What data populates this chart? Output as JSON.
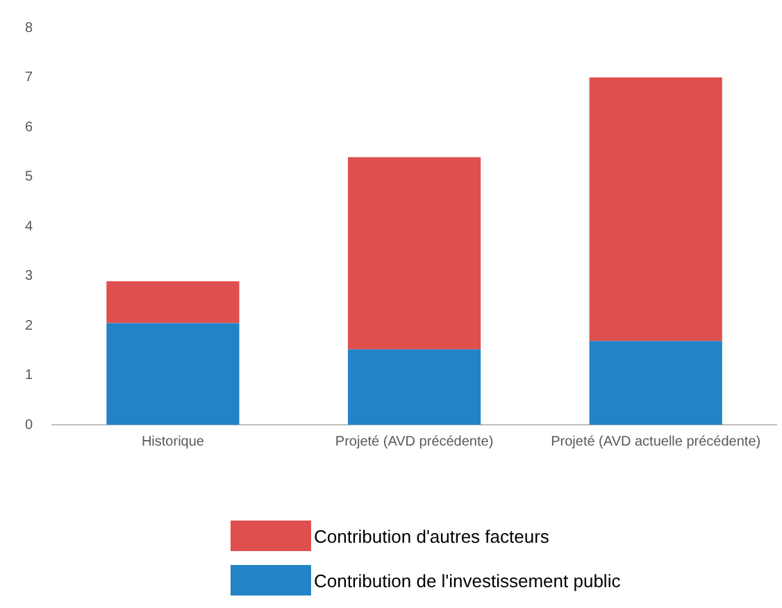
{
  "chart_data": {
    "type": "bar",
    "stacked": true,
    "categories": [
      "Historique",
      "Projeté (AVD précédente)",
      "Projeté (AVD actuelle précédente)"
    ],
    "series": [
      {
        "name": "Contribution de l'investissement public",
        "color": "#2383c6",
        "values": [
          2.05,
          1.52,
          1.69
        ]
      },
      {
        "name": "Contribution d'autres facteurs",
        "color": "#de4f4d",
        "values": [
          0.84,
          3.87,
          5.31
        ]
      }
    ],
    "ylim": [
      0,
      8
    ],
    "yticks": [
      0,
      1,
      2,
      3,
      4,
      5,
      6,
      7,
      8
    ],
    "grid": false,
    "legend": "bottom"
  }
}
